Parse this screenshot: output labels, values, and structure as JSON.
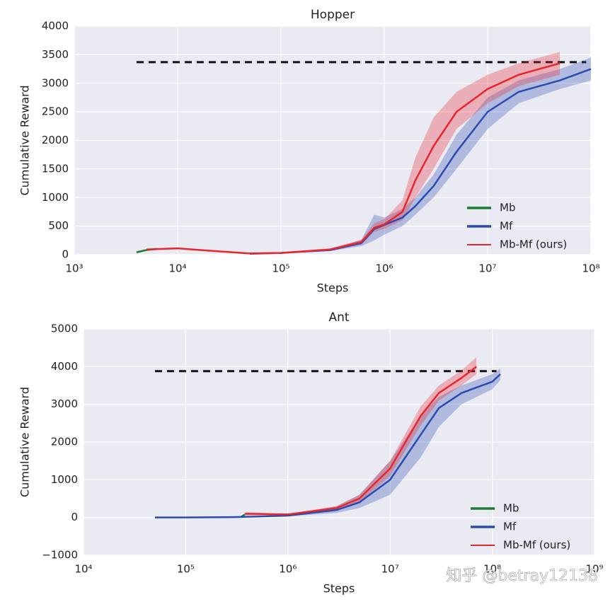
{
  "chart_data": [
    {
      "type": "line",
      "title": "Hopper",
      "xlabel": "Steps",
      "ylabel": "Cumulative Reward",
      "xscale": "log",
      "xlim": [
        1000,
        100000000
      ],
      "ylim": [
        0,
        4000
      ],
      "xticks": [
        {
          "value": 1000,
          "label": "10³"
        },
        {
          "value": 10000,
          "label": "10⁴"
        },
        {
          "value": 100000,
          "label": "10⁵"
        },
        {
          "value": 1000000,
          "label": "10⁶"
        },
        {
          "value": 10000000,
          "label": "10⁷"
        },
        {
          "value": 100000000,
          "label": "10⁸"
        }
      ],
      "yticks": [
        0,
        500,
        1000,
        1500,
        2000,
        2500,
        3000,
        3500,
        4000
      ],
      "grid": true,
      "legend": "lower right",
      "hlines": [
        {
          "y": 3370,
          "x": [
            4000,
            90000000
          ],
          "color": "#111111"
        }
      ],
      "series": [
        {
          "name": "Mb",
          "color": "#1f7a35",
          "x": [
            4000,
            5000,
            6300
          ],
          "values": [
            40,
            80,
            100
          ]
        },
        {
          "name": "Mf",
          "color": "#2a4cb0",
          "x": [
            50000,
            100000,
            300000,
            600000,
            800000,
            1000000,
            1500000,
            2000000,
            3000000,
            5000000,
            10000000,
            20000000,
            50000000,
            100000000
          ],
          "values": [
            15,
            30,
            80,
            200,
            450,
            520,
            650,
            850,
            1200,
            1800,
            2500,
            2850,
            3050,
            3250
          ],
          "lower": [
            10,
            20,
            60,
            150,
            250,
            350,
            500,
            700,
            1000,
            1500,
            2200,
            2650,
            2900,
            3050
          ],
          "upper": [
            20,
            40,
            100,
            260,
            700,
            650,
            800,
            1000,
            1400,
            2100,
            2750,
            3050,
            3250,
            3450
          ]
        },
        {
          "name": "Mb-Mf (ours)",
          "color": "#e8262e",
          "x": [
            5000,
            10000,
            20000,
            50000,
            100000,
            300000,
            600000,
            800000,
            1000000,
            1500000,
            2000000,
            3000000,
            5000000,
            10000000,
            20000000,
            50000000
          ],
          "values": [
            90,
            110,
            70,
            20,
            30,
            90,
            220,
            470,
            530,
            750,
            1300,
            1900,
            2500,
            2900,
            3150,
            3350
          ],
          "lower": [
            80,
            100,
            60,
            15,
            20,
            70,
            180,
            400,
            450,
            600,
            1000,
            1500,
            2200,
            2650,
            2950,
            3150
          ],
          "upper": [
            100,
            120,
            80,
            25,
            40,
            110,
            260,
            550,
            620,
            950,
            1700,
            2400,
            2850,
            3150,
            3350,
            3550
          ]
        }
      ]
    },
    {
      "type": "line",
      "title": "Ant",
      "xlabel": "Steps",
      "ylabel": "Cumulative Reward",
      "xscale": "log",
      "xlim": [
        10000,
        1000000000
      ],
      "ylim": [
        -1000,
        5000
      ],
      "xticks": [
        {
          "value": 10000,
          "label": "10⁴"
        },
        {
          "value": 100000,
          "label": "10⁵"
        },
        {
          "value": 1000000,
          "label": "10⁶"
        },
        {
          "value": 10000000,
          "label": "10⁷"
        },
        {
          "value": 100000000,
          "label": "10⁸"
        },
        {
          "value": 1000000000,
          "label": "10⁹"
        }
      ],
      "yticks": [
        {
          "value": -1000,
          "label": "−1000"
        },
        0,
        1000,
        2000,
        3000,
        4000,
        5000
      ],
      "grid": true,
      "legend": "lower right",
      "hlines": [
        {
          "y": 3880,
          "x": [
            50000,
            110000000
          ],
          "color": "#111111"
        }
      ],
      "series": [
        {
          "name": "Mb",
          "color": "#1f7a35",
          "x": [
            350000,
            380000
          ],
          "values": [
            20,
            80
          ]
        },
        {
          "name": "Mf",
          "color": "#2a4cb0",
          "x": [
            50000,
            100000,
            300000,
            1000000,
            3000000,
            5000000,
            10000000,
            20000000,
            30000000,
            50000000,
            100000000,
            120000000
          ],
          "values": [
            0,
            0,
            10,
            50,
            200,
            400,
            1000,
            2200,
            2900,
            3300,
            3600,
            3800
          ],
          "lower": [
            -10,
            -10,
            0,
            30,
            120,
            250,
            600,
            1600,
            2400,
            3000,
            3400,
            3650
          ],
          "upper": [
            10,
            10,
            20,
            70,
            300,
            600,
            1500,
            2700,
            3200,
            3500,
            3800,
            3950
          ]
        },
        {
          "name": "Mb-Mf (ours)",
          "color": "#e8262e",
          "x": [
            380000,
            1000000,
            3000000,
            5000000,
            10000000,
            20000000,
            30000000,
            50000000,
            70000000
          ],
          "values": [
            100,
            80,
            250,
            500,
            1300,
            2700,
            3300,
            3700,
            4000
          ],
          "lower": [
            60,
            60,
            200,
            400,
            1100,
            2450,
            3100,
            3500,
            3800
          ],
          "upper": [
            140,
            100,
            300,
            600,
            1500,
            2950,
            3500,
            3900,
            4250
          ]
        }
      ]
    }
  ],
  "watermark": "知乎 @betray12138"
}
